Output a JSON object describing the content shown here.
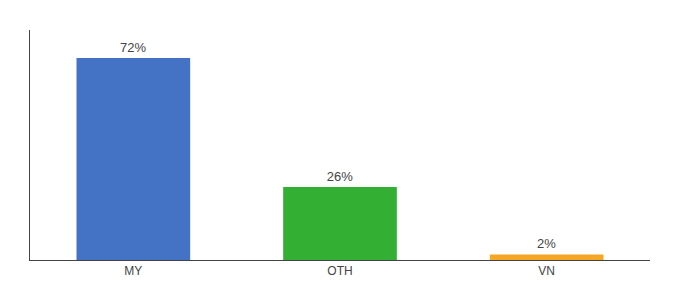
{
  "chart_data": {
    "type": "bar",
    "categories": [
      "MY",
      "OTH",
      "VN"
    ],
    "values": [
      72,
      26,
      2
    ],
    "value_labels": [
      "72%",
      "26%",
      "2%"
    ],
    "data_labels": true,
    "colors": [
      "#4472c4",
      "#33b033",
      "#f5a623"
    ],
    "ylim": [
      0,
      82
    ],
    "grid": false,
    "tick_labels": "x"
  }
}
